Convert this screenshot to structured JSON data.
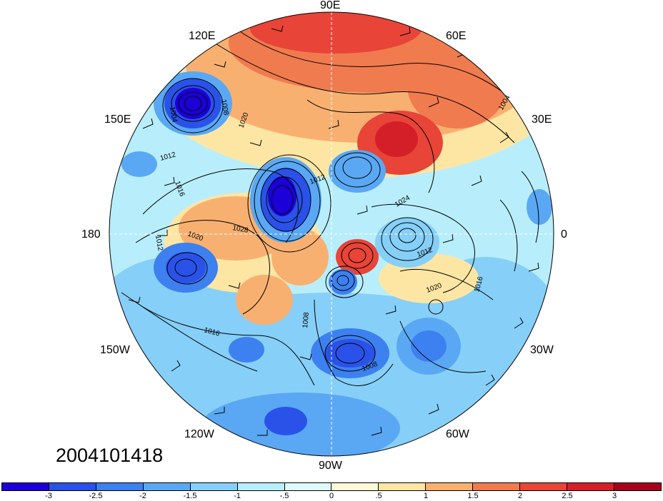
{
  "lon_labels": [
    {
      "id": "lon-90e",
      "text": "90E"
    },
    {
      "id": "lon-120e",
      "text": "120E"
    },
    {
      "id": "lon-60e",
      "text": "60E"
    },
    {
      "id": "lon-150e",
      "text": "150E"
    },
    {
      "id": "lon-30e",
      "text": "30E"
    },
    {
      "id": "lon-180",
      "text": "180"
    },
    {
      "id": "lon-0",
      "text": "0"
    },
    {
      "id": "lon-150w",
      "text": "150W"
    },
    {
      "id": "lon-30w",
      "text": "30W"
    },
    {
      "id": "lon-120w",
      "text": "120W"
    },
    {
      "id": "lon-60w",
      "text": "60W"
    },
    {
      "id": "lon-90w",
      "text": "90W"
    }
  ],
  "date_stamp": "2004101418",
  "contour_labels": [
    "1008",
    "1004",
    "1020",
    "1012",
    "1016",
    "1020",
    "1024",
    "1028",
    "1012",
    "1020",
    "1016",
    "1012",
    "1008",
    "1016",
    "1008",
    "1004",
    "1012"
  ],
  "colorbar": {
    "colors": [
      "#1b00d8",
      "#2a52e8",
      "#3d80f0",
      "#5aa8f4",
      "#86cff8",
      "#b8eefc",
      "#dffafd",
      "#fff9d7",
      "#fde6a4",
      "#f8b071",
      "#f07b4f",
      "#e84438",
      "#d41f28",
      "#a5001b"
    ],
    "tick_labels": [
      "-3",
      "-2.5",
      "-2",
      "-1.5",
      "-1",
      "-.5",
      "0",
      ".5",
      "1",
      "1.5",
      "2",
      "2.5",
      "3"
    ]
  }
}
